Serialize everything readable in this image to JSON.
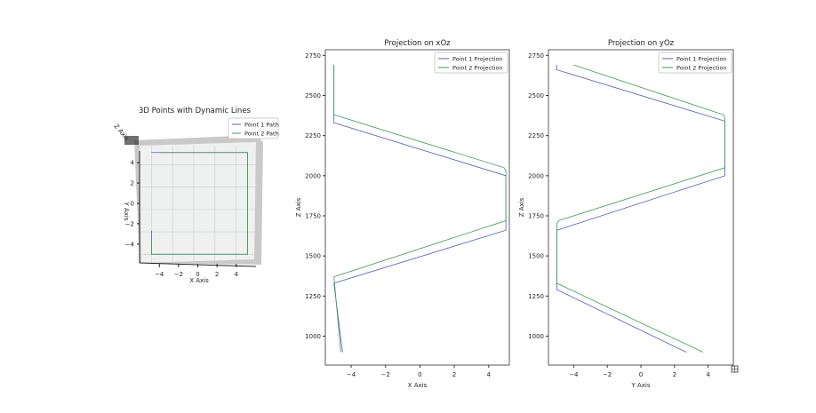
{
  "chart_data": [
    {
      "type": "line",
      "title": "3D Points with Dynamic Lines",
      "xlabel": "X Axis",
      "ylabel": "Y Axis",
      "zlabel": "Z Axis",
      "xticks": [
        -4,
        -2,
        0,
        2,
        4
      ],
      "yticks": [
        -4,
        -2,
        0,
        2,
        4
      ],
      "xlim": [
        -5.5,
        5.5
      ],
      "ylim": [
        -5.5,
        5.5
      ],
      "legend": [
        "Point 1 Path",
        "Point 2 Path"
      ],
      "legend_loc": "top-right",
      "series": [
        {
          "name": "Point 1 Path",
          "color": "#4c5fbf",
          "x": [
            -5,
            5,
            5,
            -5,
            -5
          ],
          "y": [
            5,
            5,
            -5,
            -5,
            -2.7
          ]
        },
        {
          "name": "Point 2 Path",
          "color": "#3f9a55",
          "x": [
            -4,
            5,
            5,
            -5,
            -5
          ],
          "y": [
            5,
            5,
            -5,
            -5,
            -3.7
          ]
        }
      ]
    },
    {
      "type": "line",
      "title": "Projection on xOz",
      "xlabel": "X Axis",
      "ylabel": "Z Axis",
      "xticks": [
        -4,
        -2,
        0,
        2,
        4
      ],
      "yticks": [
        1000,
        1250,
        1500,
        1750,
        2000,
        2250,
        2500,
        2750
      ],
      "xlim": [
        -5.5,
        5.2
      ],
      "ylim": [
        820,
        2785
      ],
      "legend_loc": "top-right",
      "series": [
        {
          "name": "Point 1 Projection",
          "color": "#4c5fbf",
          "x": [
            -5,
            -5,
            5,
            5,
            -5,
            -4.5
          ],
          "y": [
            2690,
            2330,
            2000,
            1660,
            1330,
            900
          ]
        },
        {
          "name": "Point 2 Projection",
          "color": "#3f9a55",
          "x": [
            -5,
            -5,
            4.9,
            5,
            5,
            -5,
            -4.6
          ],
          "y": [
            2690,
            2380,
            2050,
            2030,
            1720,
            1370,
            900
          ]
        }
      ]
    },
    {
      "type": "line",
      "title": "Projection on yOz",
      "xlabel": "Y Axis",
      "ylabel": "Z Axis",
      "xticks": [
        -4,
        -2,
        0,
        2,
        4
      ],
      "yticks": [
        1000,
        1250,
        1500,
        1750,
        2000,
        2250,
        2500,
        2750
      ],
      "xlim": [
        -5.5,
        5.5
      ],
      "ylim": [
        820,
        2785
      ],
      "legend_loc": "top-right",
      "series": [
        {
          "name": "Point 1 Projection",
          "color": "#4c5fbf",
          "x": [
            -5,
            -5,
            5,
            5,
            -5,
            -5,
            2.7
          ],
          "y": [
            2690,
            2660,
            2340,
            2000,
            1660,
            1290,
            900
          ]
        },
        {
          "name": "Point 2 Projection",
          "color": "#3f9a55",
          "x": [
            -4,
            4.9,
            5,
            5,
            -4.9,
            -5,
            -5,
            3.7
          ],
          "y": [
            2690,
            2380,
            2360,
            2050,
            1720,
            1700,
            1330,
            900
          ]
        }
      ]
    }
  ]
}
